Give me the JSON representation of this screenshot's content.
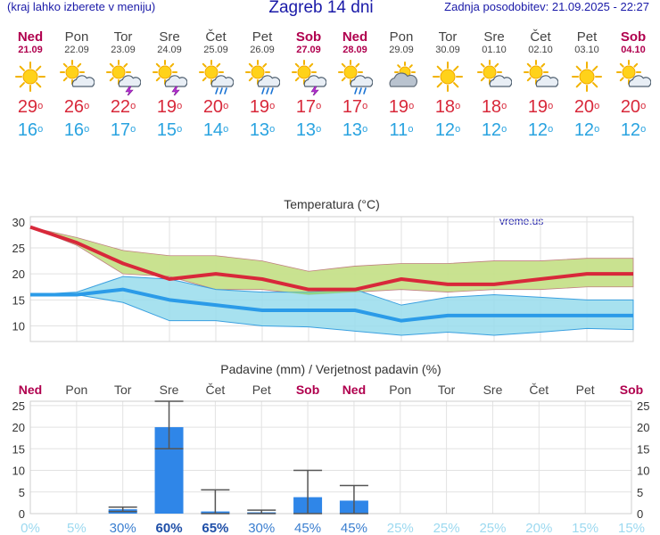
{
  "header": {
    "left_note": "(kraj lahko izberete v meniju)",
    "title": "Zagreb 14 dni",
    "updated": "Zadnja posodobitev: 21.09.2025 - 22:27"
  },
  "colors": {
    "header_text": "#1a1aa8",
    "weekend": "#b0004e",
    "tmax": "#d8283a",
    "tmin": "#29a3e0",
    "bar": "#2f86e8",
    "max_band": "#c6e08a",
    "min_band": "#98dcec",
    "overlap": "#8ed38a"
  },
  "days": [
    {
      "name": "Ned",
      "date": "21.09",
      "weekend": true,
      "icon": "sun-icon",
      "tmax": "29",
      "tmin": "16"
    },
    {
      "name": "Pon",
      "date": "22.09",
      "weekend": false,
      "icon": "sun-cloud-icon",
      "tmax": "26",
      "tmin": "16"
    },
    {
      "name": "Tor",
      "date": "23.09",
      "weekend": false,
      "icon": "sun-cloud-thunder-icon",
      "tmax": "22",
      "tmin": "17"
    },
    {
      "name": "Sre",
      "date": "24.09",
      "weekend": false,
      "icon": "sun-cloud-thunder-icon",
      "tmax": "19",
      "tmin": "15"
    },
    {
      "name": "Čet",
      "date": "25.09",
      "weekend": false,
      "icon": "sun-cloud-rain-icon",
      "tmax": "20",
      "tmin": "14"
    },
    {
      "name": "Pet",
      "date": "26.09",
      "weekend": false,
      "icon": "sun-cloud-rain-icon",
      "tmax": "19",
      "tmin": "13"
    },
    {
      "name": "Sob",
      "date": "27.09",
      "weekend": true,
      "icon": "sun-cloud-thunder-icon",
      "tmax": "17",
      "tmin": "13"
    },
    {
      "name": "Ned",
      "date": "28.09",
      "weekend": true,
      "icon": "sun-cloud-rain-icon",
      "tmax": "17",
      "tmin": "13"
    },
    {
      "name": "Pon",
      "date": "29.09",
      "weekend": false,
      "icon": "cloud-sun-icon",
      "tmax": "19",
      "tmin": "11"
    },
    {
      "name": "Tor",
      "date": "30.09",
      "weekend": false,
      "icon": "sun-icon",
      "tmax": "18",
      "tmin": "12"
    },
    {
      "name": "Sre",
      "date": "01.10",
      "weekend": false,
      "icon": "sun-cloud-icon",
      "tmax": "18",
      "tmin": "12"
    },
    {
      "name": "Čet",
      "date": "02.10",
      "weekend": false,
      "icon": "sun-cloud-icon",
      "tmax": "19",
      "tmin": "12"
    },
    {
      "name": "Pet",
      "date": "03.10",
      "weekend": false,
      "icon": "sun-icon",
      "tmax": "20",
      "tmin": "12"
    },
    {
      "name": "Sob",
      "date": "04.10",
      "weekend": true,
      "icon": "sun-cloud-icon",
      "tmax": "20",
      "tmin": "12"
    }
  ],
  "chart_data": [
    {
      "type": "line",
      "title": "Temperatura (°C)",
      "watermark": "vreme.us",
      "ylim": [
        7,
        31
      ],
      "yticks": [
        10,
        15,
        20,
        25,
        30
      ],
      "grid": true,
      "x": [
        "Ned",
        "Pon",
        "Tor",
        "Sre",
        "Čet",
        "Pet",
        "Sob",
        "Ned",
        "Pon",
        "Tor",
        "Sre",
        "Čet",
        "Pet",
        "Sob"
      ],
      "series": [
        {
          "values": [
            29,
            26,
            22,
            19,
            20,
            19,
            17,
            17,
            19,
            18,
            18,
            19,
            20,
            20
          ]
        },
        {
          "values": [
            16,
            16,
            17,
            15,
            14,
            13,
            13,
            13,
            11,
            12,
            12,
            12,
            12,
            12
          ]
        }
      ],
      "ranges": [
        {
          "lower": [
            29,
            25.5,
            20,
            19.5,
            17,
            17,
            16,
            16.5,
            17,
            16.5,
            17,
            17,
            17.5,
            17.5
          ],
          "upper": [
            29,
            27,
            24.5,
            23.5,
            23.5,
            22.5,
            20.5,
            21.5,
            22,
            22,
            22.5,
            22.5,
            23,
            23
          ]
        },
        {
          "lower": [
            16,
            16,
            14.5,
            11,
            11,
            10,
            9.8,
            9,
            8.2,
            8.8,
            8.2,
            8.8,
            9.5,
            9.3
          ],
          "upper": [
            16,
            16.5,
            19.5,
            19,
            17,
            16.5,
            16.5,
            17,
            14,
            15.5,
            16,
            15.5,
            15,
            15
          ]
        }
      ]
    },
    {
      "type": "bar",
      "title": "Padavine (mm) / Verjetnost padavin (%)",
      "ylim": [
        0,
        26
      ],
      "yticks": [
        0,
        5,
        10,
        15,
        20,
        25
      ],
      "grid": true,
      "categories": [
        "Ned",
        "Pon",
        "Tor",
        "Sre",
        "Čet",
        "Pet",
        "Sob",
        "Ned",
        "Pon",
        "Tor",
        "Sre",
        "Čet",
        "Pet",
        "Sob"
      ],
      "values": [
        0,
        0,
        1,
        20,
        0.5,
        0.3,
        3.8,
        3,
        0,
        0,
        0,
        0,
        0,
        0
      ],
      "error_low": [
        0,
        0,
        0.5,
        15,
        0,
        0,
        0,
        0,
        0,
        0,
        0,
        0,
        0,
        0
      ],
      "error_high": [
        0,
        0,
        1.5,
        26,
        5.5,
        0.8,
        10,
        6.5,
        0,
        0,
        0,
        0,
        0,
        0
      ],
      "probability": [
        "0%",
        "5%",
        "30%",
        "60%",
        "65%",
        "30%",
        "45%",
        "45%",
        "25%",
        "25%",
        "25%",
        "20%",
        "15%",
        "15%"
      ],
      "probability_values": [
        0,
        5,
        30,
        60,
        65,
        30,
        45,
        45,
        25,
        25,
        25,
        20,
        15,
        15
      ]
    }
  ]
}
